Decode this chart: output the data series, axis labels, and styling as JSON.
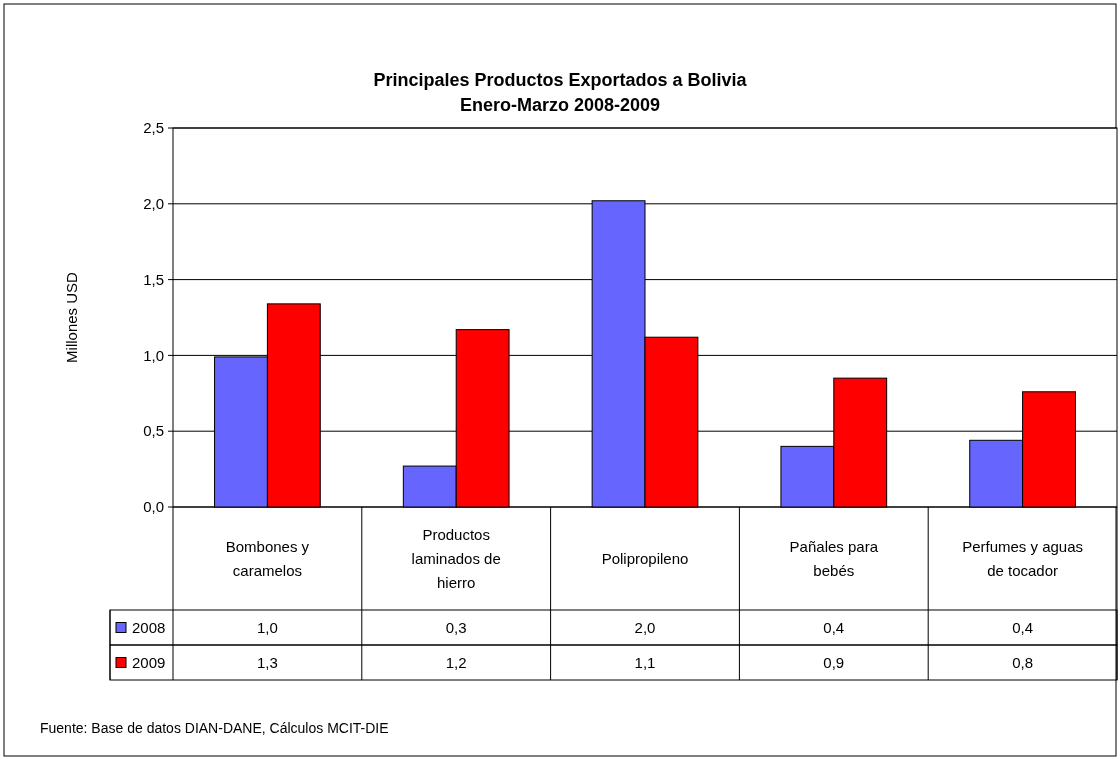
{
  "chart_data": {
    "type": "bar",
    "title": "Principales Productos Exportados a Bolivia",
    "subtitle": "Enero-Marzo 2008-2009",
    "ylabel": "Millones USD",
    "categories": [
      "Bombones y caramelos",
      "Productos laminados de hierro",
      "Polipropileno",
      "Pañales para bebés",
      "Perfumes y aguas de tocador"
    ],
    "series": [
      {
        "name": "2008",
        "color": "#6666ff",
        "values": [
          0.99,
          0.27,
          2.02,
          0.4,
          0.44
        ],
        "value_labels": [
          "1,0",
          "0,3",
          "2,0",
          "0,4",
          "0,4"
        ]
      },
      {
        "name": "2009",
        "color": "#ff0000",
        "values": [
          1.34,
          1.17,
          1.12,
          0.85,
          0.76
        ],
        "value_labels": [
          "1,3",
          "1,2",
          "1,1",
          "0,9",
          "0,8"
        ]
      }
    ],
    "ylim": [
      0,
      2.5
    ],
    "yticks": [
      {
        "value": 0,
        "label": "0,0"
      },
      {
        "value": 0.5,
        "label": "0,5"
      },
      {
        "value": 1,
        "label": "1,0"
      },
      {
        "value": 1.5,
        "label": "1,5"
      },
      {
        "value": 2,
        "label": "2,0"
      },
      {
        "value": 2.5,
        "label": "2,5"
      }
    ],
    "grid": "y",
    "legend": "bottom",
    "annotations": [
      "Fuente: Base de datos DIAN-DANE, Cálculos MCIT-DIE"
    ]
  }
}
